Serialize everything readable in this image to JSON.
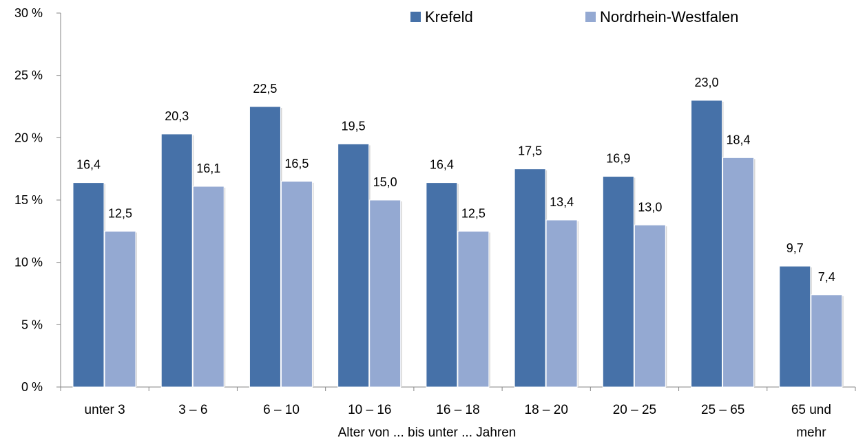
{
  "chart_data": {
    "type": "bar",
    "xlabel": "Alter von ... bis unter ... Jahren",
    "ylabel": "",
    "ylim": [
      0,
      30
    ],
    "y_ticks": [
      {
        "value": 0,
        "label": "0 %"
      },
      {
        "value": 5,
        "label": "5 %"
      },
      {
        "value": 10,
        "label": "10 %"
      },
      {
        "value": 15,
        "label": "15 %"
      },
      {
        "value": 20,
        "label": "20 %"
      },
      {
        "value": 25,
        "label": "25 %"
      },
      {
        "value": 30,
        "label": "30 %"
      }
    ],
    "categories": [
      [
        "unter 3"
      ],
      [
        "3 –  6"
      ],
      [
        "6 – 10"
      ],
      [
        "10 – 16"
      ],
      [
        "16 – 18"
      ],
      [
        "18 – 20"
      ],
      [
        "20 – 25"
      ],
      [
        "25 – 65"
      ],
      [
        "65 und",
        "mehr"
      ]
    ],
    "series": [
      {
        "name": "Krefeld",
        "color": "#4671A8",
        "values": [
          16.4,
          20.3,
          22.5,
          19.5,
          16.4,
          17.5,
          16.9,
          23.0,
          9.7
        ],
        "labels": [
          "16,4",
          "20,3",
          "22,5",
          "19,5",
          "16,4",
          "17,5",
          "16,9",
          "23,0",
          "9,7"
        ]
      },
      {
        "name": "Nordrhein-Westfalen",
        "color": "#94A9D2",
        "values": [
          12.5,
          16.1,
          16.5,
          15.0,
          12.5,
          13.4,
          13.0,
          18.4,
          7.4
        ],
        "labels": [
          "12,5",
          "16,1",
          "16,5",
          "15,0",
          "12,5",
          "13,4",
          "13,0",
          "18,4",
          "7,4"
        ]
      }
    ],
    "legend_position": "top-right",
    "grid": false
  }
}
